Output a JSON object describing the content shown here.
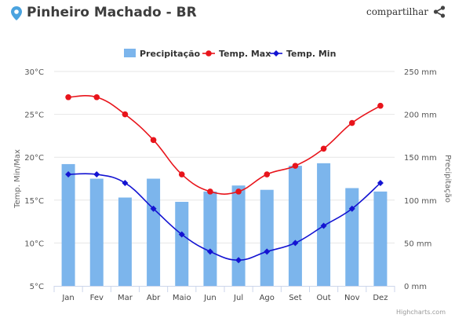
{
  "header": {
    "location": "Pinheiro Machado - BR",
    "share_label": "compartilhar"
  },
  "colors": {
    "precip": "#7cb5ec",
    "tmax": "#e8141b",
    "tmin": "#1414d2",
    "text": "#3d3d3d",
    "grid": "#e6e6e6"
  },
  "credit": "Highcharts.com",
  "chart_data": {
    "type": "bar",
    "categories": [
      "Jan",
      "Fev",
      "Mar",
      "Abr",
      "Maio",
      "Jun",
      "Jul",
      "Ago",
      "Set",
      "Out",
      "Nov",
      "Dez"
    ],
    "series": [
      {
        "name": "Precipitação",
        "type": "bar",
        "axis": "right",
        "values": [
          142,
          125,
          103,
          125,
          98,
          110,
          117,
          112,
          140,
          143,
          114,
          110
        ]
      },
      {
        "name": "Temp. Max",
        "type": "line",
        "axis": "left",
        "values": [
          27,
          27,
          25,
          22,
          18,
          16,
          16,
          18,
          19,
          21,
          24,
          26
        ]
      },
      {
        "name": "Temp. Min",
        "type": "line",
        "axis": "left",
        "values": [
          18,
          18,
          17,
          14,
          11,
          9,
          8,
          9,
          10,
          12,
          14,
          17
        ]
      }
    ],
    "y_left": {
      "label": "Temp. Min/Max",
      "range": [
        5,
        30
      ],
      "ticks": [
        "5°C",
        "10°C",
        "15°C",
        "20°C",
        "25°C",
        "30°C"
      ]
    },
    "y_right": {
      "label": "Precipitação",
      "range": [
        0,
        250
      ],
      "ticks": [
        "0 mm",
        "50 mm",
        "100 mm",
        "150 mm",
        "200 mm",
        "250 mm"
      ]
    },
    "legend": "top",
    "grid": true
  }
}
